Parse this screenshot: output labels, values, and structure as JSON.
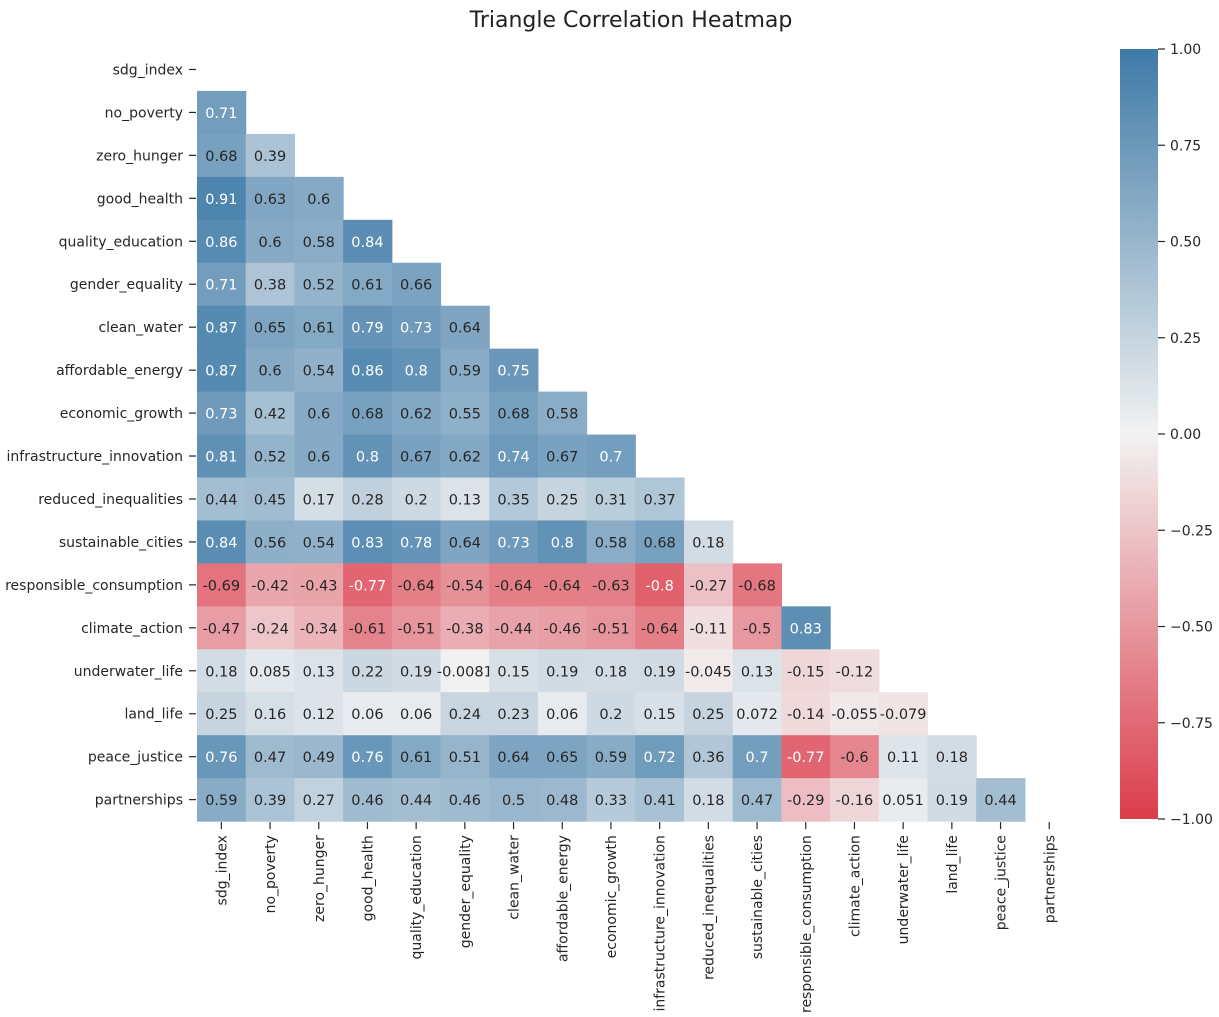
{
  "chart_data": {
    "type": "heatmap",
    "title": "Triangle Correlation Heatmap",
    "variables": [
      "sdg_index",
      "no_poverty",
      "zero_hunger",
      "good_health",
      "quality_education",
      "gender_equality",
      "clean_water",
      "affordable_energy",
      "economic_growth",
      "infrastructure_innovation",
      "reduced_inequalities",
      "sustainable_cities",
      "responsible_consumption",
      "climate_action",
      "underwater_life",
      "land_life",
      "peace_justice",
      "partnerships"
    ],
    "mask": "upper-triangle-including-diagonal",
    "lower_triangle_labels": [
      [],
      [
        "0.71"
      ],
      [
        "0.68",
        "0.39"
      ],
      [
        "0.91",
        "0.63",
        "0.6"
      ],
      [
        "0.86",
        "0.6",
        "0.58",
        "0.84"
      ],
      [
        "0.71",
        "0.38",
        "0.52",
        "0.61",
        "0.66"
      ],
      [
        "0.87",
        "0.65",
        "0.61",
        "0.79",
        "0.73",
        "0.64"
      ],
      [
        "0.87",
        "0.6",
        "0.54",
        "0.86",
        "0.8",
        "0.59",
        "0.75"
      ],
      [
        "0.73",
        "0.42",
        "0.6",
        "0.68",
        "0.62",
        "0.55",
        "0.68",
        "0.58"
      ],
      [
        "0.81",
        "0.52",
        "0.6",
        "0.8",
        "0.67",
        "0.62",
        "0.74",
        "0.67",
        "0.7"
      ],
      [
        "0.44",
        "0.45",
        "0.17",
        "0.28",
        "0.2",
        "0.13",
        "0.35",
        "0.25",
        "0.31",
        "0.37"
      ],
      [
        "0.84",
        "0.56",
        "0.54",
        "0.83",
        "0.78",
        "0.64",
        "0.73",
        "0.8",
        "0.58",
        "0.68",
        "0.18"
      ],
      [
        "-0.69",
        "-0.42",
        "-0.43",
        "-0.77",
        "-0.64",
        "-0.54",
        "-0.64",
        "-0.64",
        "-0.63",
        "-0.8",
        "-0.27",
        "-0.68"
      ],
      [
        "-0.47",
        "-0.24",
        "-0.34",
        "-0.61",
        "-0.51",
        "-0.38",
        "-0.44",
        "-0.46",
        "-0.51",
        "-0.64",
        "-0.11",
        "-0.5",
        "0.83"
      ],
      [
        "0.18",
        "0.085",
        "0.13",
        "0.22",
        "0.19",
        "-0.0081",
        "0.15",
        "0.19",
        "0.18",
        "0.19",
        "-0.045",
        "0.13",
        "-0.15",
        "-0.12"
      ],
      [
        "0.25",
        "0.16",
        "0.12",
        "0.06",
        "0.06",
        "0.24",
        "0.23",
        "0.06",
        "0.2",
        "0.15",
        "0.25",
        "0.072",
        "-0.14",
        "-0.055",
        "-0.079"
      ],
      [
        "0.76",
        "0.47",
        "0.49",
        "0.76",
        "0.61",
        "0.51",
        "0.64",
        "0.65",
        "0.59",
        "0.72",
        "0.36",
        "0.7",
        "-0.77",
        "-0.6",
        "0.11",
        "0.18"
      ],
      [
        "0.59",
        "0.39",
        "0.27",
        "0.46",
        "0.44",
        "0.46",
        "0.5",
        "0.48",
        "0.33",
        "0.41",
        "0.18",
        "0.47",
        "-0.29",
        "-0.16",
        "0.051",
        "0.19",
        "0.44"
      ]
    ],
    "colorbar": {
      "range": [
        -1.0,
        1.0
      ],
      "ticks": [
        "1.00",
        "0.75",
        "0.50",
        "0.25",
        "0.00",
        "−0.25",
        "−0.50",
        "−0.75",
        "−1.00"
      ],
      "tick_values": [
        1.0,
        0.75,
        0.5,
        0.25,
        0.0,
        -0.25,
        -0.5,
        -0.75,
        -1.0
      ]
    },
    "colors": {
      "negative": "#dc3c4b",
      "center": "#f2f2f2",
      "positive": "#3e7aa7"
    }
  }
}
